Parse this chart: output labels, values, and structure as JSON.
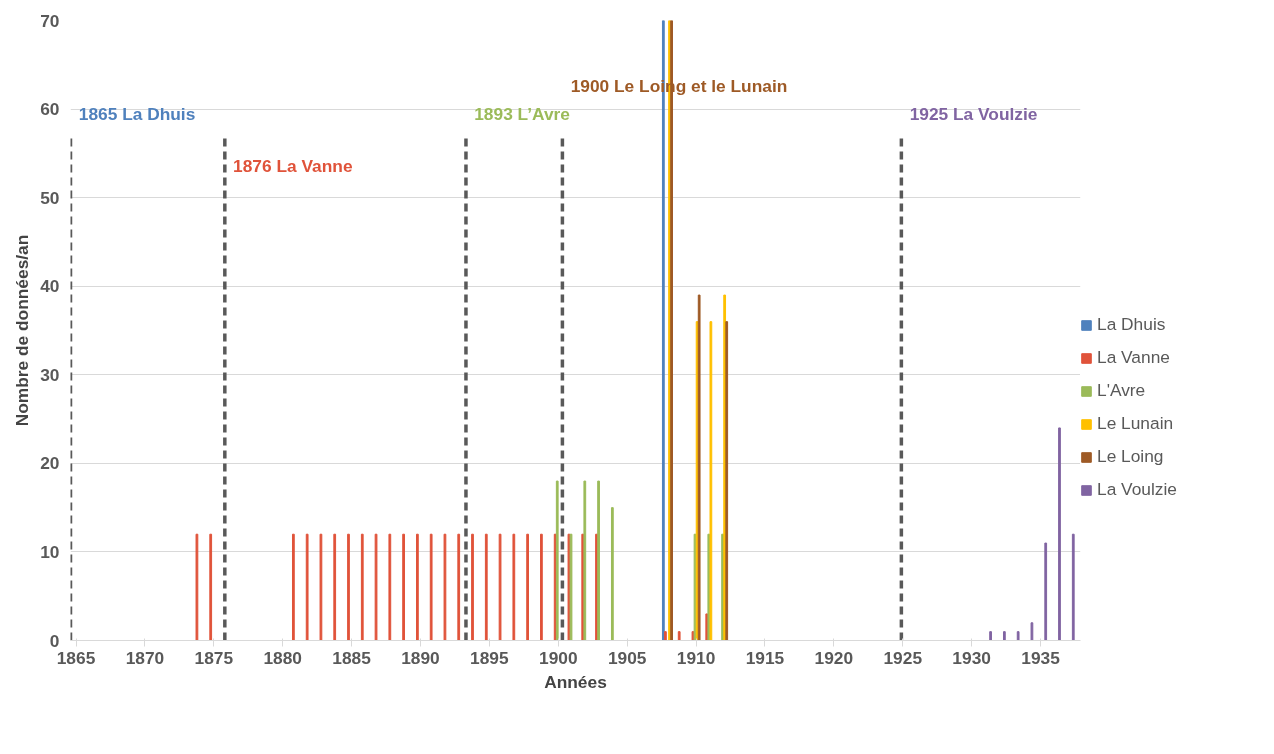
{
  "chart_data": {
    "type": "bar",
    "xlabel": "Années",
    "ylabel": "Nombre de données/an",
    "xlim": [
      1864.6,
      1937.9
    ],
    "xticks": [
      1865,
      1870,
      1875,
      1880,
      1885,
      1890,
      1895,
      1900,
      1905,
      1910,
      1915,
      1920,
      1925,
      1930,
      1935
    ],
    "ylim": [
      0,
      70
    ],
    "yticks": [
      0,
      10,
      20,
      30,
      40,
      50,
      60,
      70
    ],
    "grid": "y",
    "legend": "right",
    "series": [
      {
        "name": "La Dhuis",
        "color": "#4f81bd",
        "x": [
          1908
        ],
        "values": [
          70
        ]
      },
      {
        "name": "La Vanne",
        "color": "#e0533a",
        "x": [
          1874,
          1875,
          1881,
          1882,
          1883,
          1884,
          1885,
          1886,
          1887,
          1888,
          1889,
          1890,
          1891,
          1892,
          1893,
          1894,
          1895,
          1896,
          1897,
          1898,
          1899,
          1900,
          1901,
          1902,
          1903,
          1908,
          1909,
          1910,
          1911
        ],
        "values": [
          12,
          12,
          12,
          12,
          12,
          12,
          12,
          12,
          12,
          12,
          12,
          12,
          12,
          12,
          12,
          12,
          12,
          12,
          12,
          12,
          12,
          12,
          12,
          12,
          12,
          1,
          1,
          1,
          3
        ]
      },
      {
        "name": "L'Avre",
        "color": "#9bbb59",
        "x": [
          1900,
          1901,
          1902,
          1903,
          1904,
          1910,
          1911,
          1912
        ],
        "values": [
          18,
          12,
          18,
          18,
          15,
          12,
          12,
          12
        ]
      },
      {
        "name": "Le Lunain",
        "color": "#ffc000",
        "x": [
          1908,
          1910,
          1911,
          1912
        ],
        "values": [
          70,
          36,
          36,
          39
        ]
      },
      {
        "name": "Le Loing",
        "color": "#9e5a26",
        "x": [
          1908,
          1910,
          1912
        ],
        "values": [
          70,
          39,
          36
        ]
      },
      {
        "name": "La Voulzie",
        "color": "#8064a2",
        "x": [
          1931,
          1932,
          1933,
          1934,
          1935,
          1936,
          1937
        ],
        "values": [
          1,
          1,
          1,
          2,
          11,
          24,
          12
        ]
      }
    ],
    "ref_lines": [
      {
        "axis": "x",
        "value": 1864.6,
        "label": "1865 La Dhuis",
        "color": "#595959",
        "line_style": "dashed"
      },
      {
        "axis": "x",
        "value": 1875.8,
        "label": "1876 La Vanne",
        "color": "#595959",
        "line_style": "dashed"
      },
      {
        "axis": "x",
        "value": 1893.3,
        "label": "1893 L’Avre",
        "color": "#595959",
        "line_style": "dashed"
      },
      {
        "axis": "x",
        "value": 1900.3,
        "label": "1900 Le Loing et le Lunain",
        "color": "#595959",
        "line_style": "dashed"
      },
      {
        "axis": "x",
        "value": 1924.9,
        "label": "1925 La Voulzie",
        "color": "#595959",
        "line_style": "dashed"
      }
    ]
  }
}
